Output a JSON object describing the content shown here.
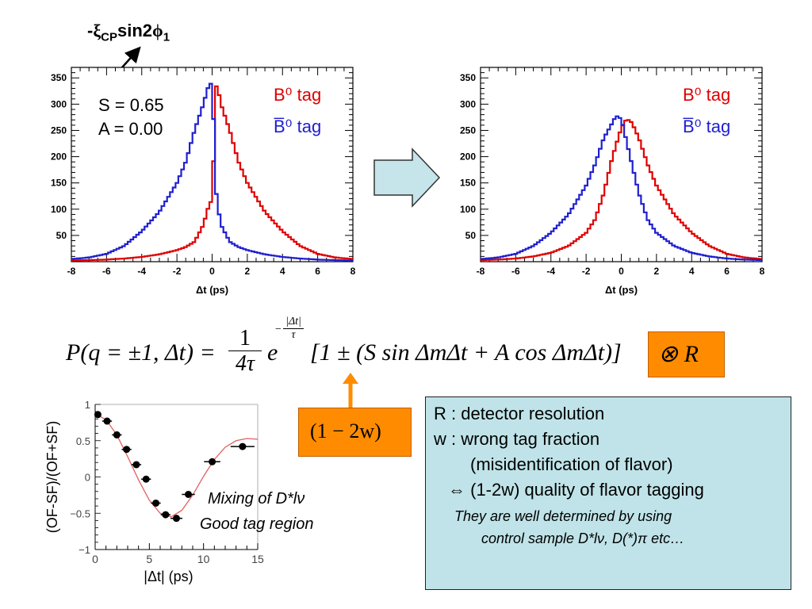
{
  "colors": {
    "b0": "#e00000",
    "b0bar": "#1f1fd0",
    "orange": "#ff8c00",
    "box": "#bfe3e8",
    "arrow": "#c5e5ea"
  },
  "control": {
    "prefix": "-",
    "xi": "ξ",
    "cp": "CP",
    "sin": "sin2",
    "phi": "ϕ",
    "sub1": "1"
  },
  "left_stats": {
    "s": "S = 0.65",
    "a": "A = 0.00"
  },
  "legend": {
    "b0_tag": "B⁰ tag",
    "b0bar_tag": "B̅⁰ tag"
  },
  "formula": {
    "lhs": "P(q = ±1, Δt) =",
    "num": "1",
    "den": "4τ",
    "e": "e",
    "exp_num": "|Δt|",
    "exp_den": "τ",
    "bracket": "[1 ± (S sin ΔmΔt + A cos ΔmΔt)]",
    "conv": "⊗ R"
  },
  "dilution": "(1 − 2w)",
  "info": {
    "line1": "R : detector resolution",
    "line2": "w : wrong tag fraction",
    "line3": "(misidentification of flavor)",
    "line4": "⇔ (1-2w) quality of flavor tagging",
    "line5": "They are well determined by using",
    "line6": "control sample D*lν, D(*)π etc…"
  },
  "mixing_text": {
    "line1": "Mixing of D*lν",
    "line2": "Good tag region"
  },
  "chart_data": [
    {
      "type": "line",
      "xlabel": "Δt (ps)",
      "xlim": [
        -8,
        8
      ],
      "ylim": [
        0,
        370
      ],
      "xticks": [
        -8,
        -6,
        -4,
        -2,
        0,
        2,
        4,
        6,
        8
      ],
      "yticks": [
        50,
        100,
        150,
        200,
        250,
        300,
        350
      ],
      "annotations": [
        "S = 0.65",
        "A = 0.00"
      ],
      "series": [
        {
          "name": "B⁰ tag",
          "color": "#e00000",
          "x": [
            -8,
            -7,
            -6,
            -5,
            -4,
            -3,
            -2,
            -1.5,
            -1,
            -0.5,
            -0.25,
            0,
            0.25,
            0.5,
            1,
            1.5,
            2,
            3,
            4,
            5,
            6,
            7,
            8
          ],
          "y": [
            2,
            3,
            4,
            6,
            9,
            14,
            22,
            28,
            38,
            70,
            100,
            120,
            343,
            300,
            250,
            190,
            150,
            95,
            58,
            30,
            15,
            8,
            5
          ]
        },
        {
          "name": "B̅⁰ tag",
          "color": "#1f1fd0",
          "x": [
            -8,
            -7,
            -6,
            -5,
            -4,
            -3,
            -2,
            -1.5,
            -1,
            -0.5,
            -0.25,
            0,
            0.25,
            0.5,
            1,
            1.5,
            2,
            3,
            4,
            5,
            6,
            7,
            8
          ],
          "y": [
            5,
            8,
            15,
            30,
            58,
            95,
            150,
            190,
            250,
            300,
            330,
            343,
            120,
            70,
            38,
            28,
            22,
            14,
            9,
            6,
            4,
            3,
            2
          ]
        }
      ]
    },
    {
      "type": "line",
      "xlabel": "Δt (ps)",
      "xlim": [
        -8,
        8
      ],
      "ylim": [
        0,
        370
      ],
      "xticks": [
        -8,
        -6,
        -4,
        -2,
        0,
        2,
        4,
        6,
        8
      ],
      "yticks": [
        50,
        100,
        150,
        200,
        250,
        300,
        350
      ],
      "series": [
        {
          "name": "B⁰ tag",
          "color": "#e00000",
          "x": [
            -8,
            -7,
            -6,
            -5,
            -4,
            -3,
            -2,
            -1.5,
            -1,
            -0.5,
            0,
            0.3,
            0.6,
            1,
            1.5,
            2,
            3,
            4,
            5,
            6,
            7,
            8
          ],
          "y": [
            3,
            4,
            6,
            10,
            17,
            30,
            55,
            80,
            130,
            200,
            255,
            272,
            265,
            235,
            185,
            145,
            90,
            55,
            30,
            15,
            8,
            5
          ]
        },
        {
          "name": "B̅⁰ tag",
          "color": "#1f1fd0",
          "x": [
            -8,
            -7,
            -6,
            -5,
            -4,
            -3,
            -2,
            -1.5,
            -1,
            -0.5,
            -0.3,
            0,
            0.5,
            1,
            1.5,
            2,
            3,
            4,
            5,
            6,
            7,
            8
          ],
          "y": [
            5,
            8,
            15,
            30,
            55,
            90,
            145,
            185,
            235,
            265,
            278,
            272,
            200,
            130,
            80,
            55,
            30,
            17,
            10,
            6,
            4,
            3
          ]
        }
      ]
    },
    {
      "type": "scatter",
      "xlabel": "|Δt| (ps)",
      "ylabel": "(OF-SF)/(OF+SF)",
      "xlim": [
        0,
        15
      ],
      "ylim": [
        -1,
        1
      ],
      "xticks": [
        0,
        5,
        10,
        15
      ],
      "yticks": [
        -1,
        -0.5,
        0,
        0.5,
        1
      ],
      "series": [
        {
          "name": "data",
          "x": [
            0.25,
            1.1,
            2.0,
            2.9,
            3.8,
            4.7,
            5.6,
            6.5,
            7.5,
            8.6,
            10.8,
            13.6
          ],
          "y": [
            0.86,
            0.77,
            0.58,
            0.38,
            0.17,
            -0.03,
            -0.36,
            -0.52,
            -0.57,
            -0.24,
            0.21,
            0.42
          ],
          "xerr": [
            0.25,
            0.45,
            0.45,
            0.45,
            0.45,
            0.45,
            0.45,
            0.45,
            0.55,
            0.6,
            0.75,
            1.1
          ]
        },
        {
          "name": "fit",
          "x": [
            0,
            1,
            2,
            3,
            4,
            5,
            6,
            7,
            8,
            9,
            10,
            11,
            12,
            13,
            14,
            15
          ],
          "y": [
            0.87,
            0.79,
            0.58,
            0.28,
            -0.04,
            -0.32,
            -0.5,
            -0.55,
            -0.46,
            -0.25,
            0.01,
            0.24,
            0.41,
            0.5,
            0.53,
            0.52
          ]
        }
      ]
    }
  ]
}
